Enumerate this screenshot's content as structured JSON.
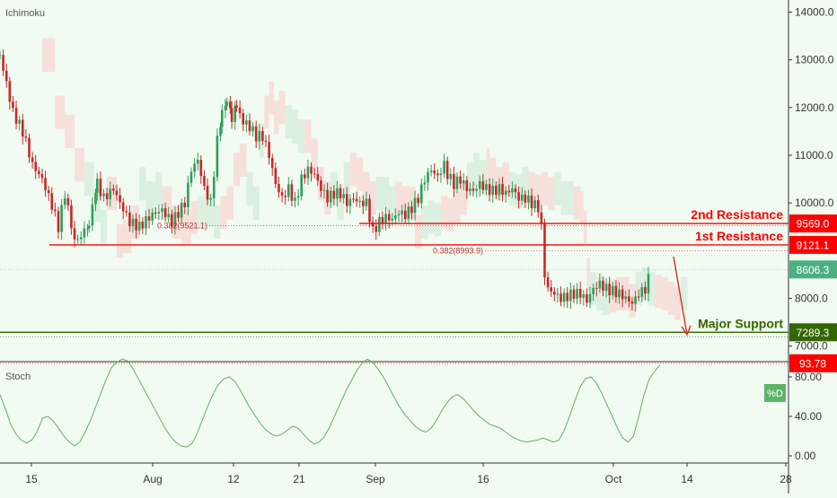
{
  "chart_data": [
    {
      "type": "candlestick",
      "title": "",
      "indicator": "Ichimoku",
      "x_tick_labels": [
        "15",
        "Aug",
        "12",
        "21",
        "Sep",
        "16",
        "Oct",
        "14",
        "28"
      ],
      "y_tick_labels": [
        "14000.0",
        "13000.0",
        "12000.0",
        "11000.0",
        "10000.0",
        "8000.0",
        "7000.0"
      ],
      "ylim": [
        6800,
        14300
      ],
      "grid": false,
      "price_series": [
        {
          "bar": 0,
          "close": 13100
        },
        {
          "bar": 8,
          "close": 11900
        },
        {
          "bar": 14,
          "close": 11500
        },
        {
          "bar": 20,
          "close": 10800
        },
        {
          "bar": 26,
          "close": 10500
        },
        {
          "bar": 32,
          "close": 9950
        },
        {
          "bar": 36,
          "close": 9500
        },
        {
          "bar": 40,
          "close": 10200
        },
        {
          "bar": 46,
          "close": 9200
        },
        {
          "bar": 50,
          "close": 9300
        },
        {
          "bar": 55,
          "close": 9600
        },
        {
          "bar": 60,
          "close": 10400
        },
        {
          "bar": 64,
          "close": 10100
        },
        {
          "bar": 70,
          "close": 10300
        },
        {
          "bar": 74,
          "close": 10000
        },
        {
          "bar": 80,
          "close": 9600
        },
        {
          "bar": 86,
          "close": 9500
        },
        {
          "bar": 92,
          "close": 9700
        },
        {
          "bar": 96,
          "close": 9800
        },
        {
          "bar": 100,
          "close": 9850
        },
        {
          "bar": 106,
          "close": 9600
        },
        {
          "bar": 110,
          "close": 9800
        },
        {
          "bar": 114,
          "close": 10000
        },
        {
          "bar": 118,
          "close": 10700
        },
        {
          "bar": 122,
          "close": 10900
        },
        {
          "bar": 126,
          "close": 10300
        },
        {
          "bar": 130,
          "close": 10000
        },
        {
          "bar": 134,
          "close": 11300
        },
        {
          "bar": 137,
          "close": 11900
        },
        {
          "bar": 140,
          "close": 12200
        },
        {
          "bar": 143,
          "close": 11800
        },
        {
          "bar": 146,
          "close": 12000
        },
        {
          "bar": 150,
          "close": 11700
        },
        {
          "bar": 154,
          "close": 11600
        },
        {
          "bar": 158,
          "close": 11400
        },
        {
          "bar": 162,
          "close": 11400
        },
        {
          "bar": 166,
          "close": 11000
        },
        {
          "bar": 170,
          "close": 10400
        },
        {
          "bar": 174,
          "close": 10100
        },
        {
          "bar": 178,
          "close": 10300
        },
        {
          "bar": 182,
          "close": 10000
        },
        {
          "bar": 186,
          "close": 10500
        },
        {
          "bar": 190,
          "close": 10700
        },
        {
          "bar": 194,
          "close": 10600
        },
        {
          "bar": 198,
          "close": 10300
        },
        {
          "bar": 202,
          "close": 10100
        },
        {
          "bar": 206,
          "close": 10200
        },
        {
          "bar": 210,
          "close": 10200
        },
        {
          "bar": 214,
          "close": 10000
        },
        {
          "bar": 218,
          "close": 10100
        },
        {
          "bar": 222,
          "close": 10000
        },
        {
          "bar": 226,
          "close": 10000
        },
        {
          "bar": 230,
          "close": 9400
        },
        {
          "bar": 234,
          "close": 9600
        },
        {
          "bar": 238,
          "close": 9700
        },
        {
          "bar": 242,
          "close": 9650
        },
        {
          "bar": 246,
          "close": 9800
        },
        {
          "bar": 250,
          "close": 9750
        },
        {
          "bar": 254,
          "close": 9900
        },
        {
          "bar": 258,
          "close": 10100
        },
        {
          "bar": 262,
          "close": 10500
        },
        {
          "bar": 266,
          "close": 10700
        },
        {
          "bar": 270,
          "close": 10550
        },
        {
          "bar": 274,
          "close": 10800
        },
        {
          "bar": 276,
          "close": 10600
        },
        {
          "bar": 280,
          "close": 10400
        },
        {
          "bar": 284,
          "close": 10500
        },
        {
          "bar": 288,
          "close": 10300
        },
        {
          "bar": 292,
          "close": 10250
        },
        {
          "bar": 296,
          "close": 10400
        },
        {
          "bar": 300,
          "close": 10300
        },
        {
          "bar": 304,
          "close": 10250
        },
        {
          "bar": 308,
          "close": 10300
        },
        {
          "bar": 312,
          "close": 10200
        },
        {
          "bar": 316,
          "close": 10300
        },
        {
          "bar": 320,
          "close": 10100
        },
        {
          "bar": 324,
          "close": 10100
        },
        {
          "bar": 328,
          "close": 10000
        },
        {
          "bar": 332,
          "close": 9900
        },
        {
          "bar": 334,
          "close": 9500
        },
        {
          "bar": 336,
          "close": 8500
        },
        {
          "bar": 338,
          "close": 8200
        },
        {
          "bar": 342,
          "close": 8100
        },
        {
          "bar": 346,
          "close": 8000
        },
        {
          "bar": 350,
          "close": 8050
        },
        {
          "bar": 354,
          "close": 8100
        },
        {
          "bar": 358,
          "close": 8100
        },
        {
          "bar": 362,
          "close": 7950
        },
        {
          "bar": 366,
          "close": 8200
        },
        {
          "bar": 370,
          "close": 8300
        },
        {
          "bar": 374,
          "close": 8200
        },
        {
          "bar": 378,
          "close": 8150
        },
        {
          "bar": 382,
          "close": 8100
        },
        {
          "bar": 386,
          "close": 8000
        },
        {
          "bar": 390,
          "close": 7900
        },
        {
          "bar": 394,
          "close": 8100
        },
        {
          "bar": 398,
          "close": 8200
        },
        {
          "bar": 402,
          "close": 8600
        }
      ],
      "levels": [
        {
          "name": "2nd Resistance",
          "value": 9569.0,
          "label": "9569.0",
          "color": "#ff0000"
        },
        {
          "name": "1st Resistance",
          "value": 9121.1,
          "label": "9121.1",
          "color": "#ff0000"
        },
        {
          "name": "Major Support",
          "value": 7289.3,
          "label": "7289.3",
          "color": "#336600"
        }
      ],
      "fib_labels": [
        {
          "text": "0.382(9521.1)",
          "value": 9521.1
        },
        {
          "text": "0.382(8993.9)",
          "value": 8993.9
        }
      ],
      "last_price": {
        "value": 8606.3,
        "label": "8606.3",
        "color": "#4caf82"
      }
    },
    {
      "type": "line",
      "indicator": "Stoch",
      "series_label": "%D",
      "y_tick_labels": [
        "80.00",
        "40.00",
        "0.00"
      ],
      "ylim": [
        -5,
        100
      ],
      "last_value": {
        "value": 93.78,
        "label": "93.78",
        "color": "#ff0000"
      },
      "values": [
        62,
        48,
        32,
        22,
        16,
        13,
        16,
        25,
        38,
        40,
        35,
        28,
        20,
        14,
        10,
        14,
        24,
        36,
        50,
        64,
        78,
        90,
        95,
        98,
        96,
        88,
        78,
        68,
        58,
        48,
        38,
        28,
        20,
        14,
        10,
        9,
        12,
        22,
        36,
        50,
        62,
        72,
        78,
        80,
        76,
        68,
        58,
        48,
        40,
        32,
        26,
        22,
        20,
        22,
        26,
        30,
        28,
        22,
        16,
        12,
        14,
        20,
        30,
        42,
        54,
        66,
        76,
        86,
        94,
        98,
        95,
        88,
        80,
        70,
        60,
        50,
        42,
        36,
        30,
        26,
        24,
        28,
        36,
        46,
        54,
        60,
        62,
        58,
        52,
        46,
        40,
        36,
        32,
        30,
        28,
        24,
        20,
        17,
        15,
        14,
        15,
        16,
        18,
        16,
        14,
        16,
        26,
        40,
        56,
        70,
        78,
        80,
        74,
        64,
        52,
        40,
        28,
        18,
        14,
        20,
        40,
        62,
        78,
        86,
        92
      ]
    }
  ]
}
